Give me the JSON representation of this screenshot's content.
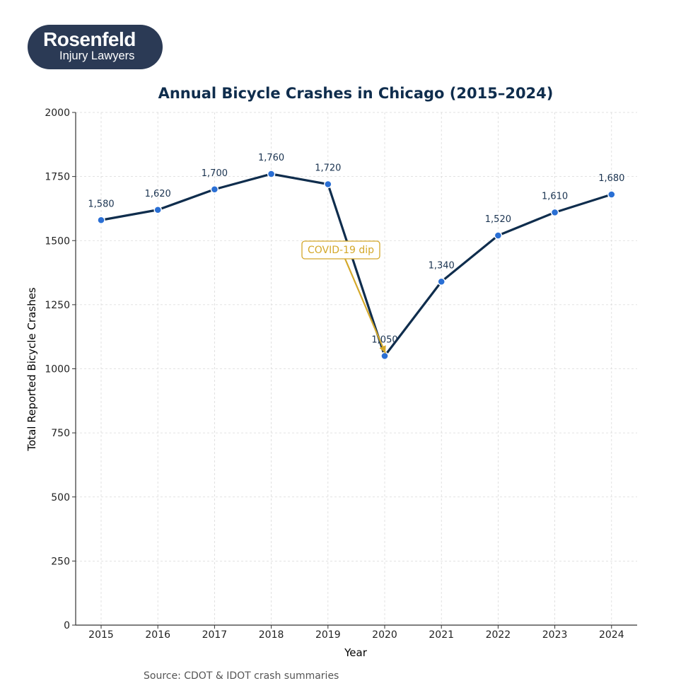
{
  "logo": {
    "name": "Rosenfeld",
    "tagline": "Injury Lawyers",
    "colors": {
      "background": "#2b3a55",
      "text": "#ffffff"
    }
  },
  "chart_data": {
    "type": "line",
    "title": "Annual Bicycle Crashes in Chicago (2015–2024)",
    "xlabel": "Year",
    "ylabel": "Total Reported Bicycle Crashes",
    "categories": [
      "2015",
      "2016",
      "2017",
      "2018",
      "2019",
      "2020",
      "2021",
      "2022",
      "2023",
      "2024"
    ],
    "series": [
      {
        "name": "Bicycle crashes",
        "values": [
          1580,
          1620,
          1700,
          1760,
          1720,
          1050,
          1340,
          1520,
          1610,
          1680
        ],
        "labels": [
          "1,580",
          "1,620",
          "1,700",
          "1,760",
          "1,720",
          "1,050",
          "1,340",
          "1,520",
          "1,610",
          "1,680"
        ]
      }
    ],
    "ylim": [
      0,
      2000
    ],
    "yticks": [
      0,
      250,
      500,
      750,
      1000,
      1250,
      1500,
      1750,
      2000
    ],
    "grid": true,
    "annotation": {
      "text": "COVID-19 dip",
      "target_category": "2020",
      "target_value": 1050
    },
    "source": "Source: CDOT & IDOT crash summaries",
    "colors": {
      "line": "#0f2d4d",
      "marker": "#2a6fd4",
      "marker_edge": "#ffffff",
      "title": "#0f2d4d",
      "data_label": "#1a3350",
      "annotation": "#d4a82a",
      "grid": "#d9d9d9",
      "axis": "#333333"
    }
  }
}
